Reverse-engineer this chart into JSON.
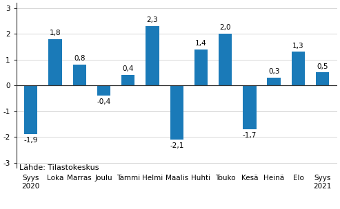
{
  "categories": [
    "Syys\n2020",
    "Loka",
    "Marras",
    "Joulu",
    "Tammi",
    "Helmi",
    "Maalis",
    "Huhti",
    "Touko",
    "Kesä",
    "Heinä",
    "Elo",
    "Syys\n2021"
  ],
  "values": [
    -1.9,
    1.8,
    0.8,
    -0.4,
    0.4,
    2.3,
    -2.1,
    1.4,
    2.0,
    -1.7,
    0.3,
    1.3,
    0.5
  ],
  "bar_color": "#1a7ab8",
  "ylim": [
    -3.2,
    3.2
  ],
  "yticks": [
    -3,
    -2,
    -1,
    0,
    1,
    2,
    3
  ],
  "source_text": "Lähde: Tilastokeskus",
  "value_labels": [
    "-1,9",
    "1,8",
    "0,8",
    "-0,4",
    "0,4",
    "2,3",
    "-2,1",
    "1,4",
    "2,0",
    "-1,7",
    "0,3",
    "1,3",
    "0,5"
  ],
  "label_fontsize": 7.5,
  "tick_fontsize": 7.5,
  "source_fontsize": 8,
  "bar_width": 0.55
}
